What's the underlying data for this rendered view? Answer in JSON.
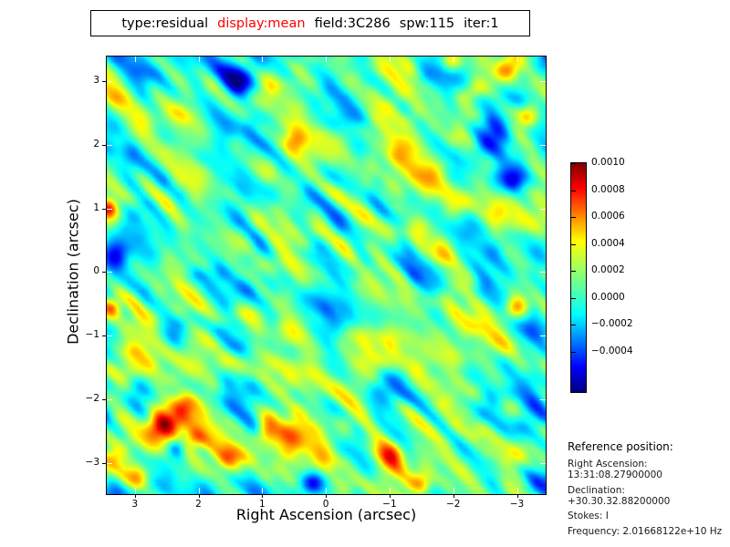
{
  "figure": {
    "title": {
      "segments": [
        {
          "text": "type:residual",
          "color": "#000000"
        },
        {
          "text": "display:mean",
          "color": "#ff0000"
        },
        {
          "text": "field:3C286",
          "color": "#000000"
        },
        {
          "text": "spw:115",
          "color": "#000000"
        },
        {
          "text": "iter:1",
          "color": "#000000"
        }
      ]
    },
    "x_axis": {
      "label": "Right Ascension (arcsec)",
      "tick_labels": [
        "3",
        "2",
        "1",
        "0",
        "−1",
        "−2",
        "−3"
      ],
      "tick_values": [
        3,
        2,
        1,
        0,
        -1,
        -2,
        -3
      ]
    },
    "y_axis": {
      "label": "Declination (arcsec)",
      "tick_labels": [
        "3",
        "2",
        "1",
        "0",
        "−1",
        "−2",
        "−3"
      ],
      "tick_values": [
        3,
        2,
        1,
        0,
        -1,
        -2,
        -3
      ]
    },
    "colorbar": {
      "tick_labels": [
        "0.0010",
        "0.0008",
        "0.0006",
        "0.0004",
        "0.0002",
        "0.0000",
        "−0.0002",
        "−0.0004"
      ],
      "tick_values": [
        0.001,
        0.0008,
        0.0006,
        0.0004,
        0.0002,
        0.0,
        -0.0002,
        -0.0004
      ]
    },
    "reference": {
      "heading": "Reference position:",
      "lines": [
        "Right Ascension: 13:31:08.27900000",
        "Declination: +30.30.32.88200000",
        "Stokes: I",
        "Frequency: 2.01668122e+10 Hz"
      ]
    }
  },
  "chart_data": {
    "type": "heatmap",
    "title": "type:residual display:mean field:3C286 spw:115 iter:1",
    "xlabel": "Right Ascension (arcsec)",
    "ylabel": "Declination (arcsec)",
    "xlim": [
      3.44,
      -3.45
    ],
    "ylim": [
      -3.49,
      3.38
    ],
    "x_ticks": [
      3,
      2,
      1,
      0,
      -1,
      -2,
      -3
    ],
    "y_ticks": [
      3,
      2,
      1,
      0,
      -1,
      -2,
      -3
    ],
    "colormap": "jet",
    "grid": false,
    "legend": "colorbar-right",
    "colorbar_ticks": [
      0.001,
      0.0008,
      0.0006,
      0.0004,
      0.0002,
      0.0,
      -0.0002,
      -0.0004
    ],
    "value_range": [
      -0.0007,
      0.001
    ],
    "background_level": 9e-05,
    "texture": "correlated residual noise with diagonal streaks (upper-left to lower-right)",
    "hotspots": [
      [
        2.58,
        -2.42,
        0.00095,
        0.17
      ],
      [
        2.1,
        -2.62,
        0.0005,
        0.13
      ],
      [
        2.22,
        -2.08,
        0.00045,
        0.13
      ],
      [
        1.55,
        -2.95,
        0.00055,
        0.15
      ],
      [
        2.95,
        -3.22,
        0.00045,
        0.14
      ],
      [
        1.0,
        -2.55,
        0.0004,
        0.12
      ],
      [
        3.35,
        -2.9,
        0.0004,
        0.13
      ],
      [
        -1.0,
        -2.9,
        0.00055,
        0.16
      ],
      [
        -1.5,
        -3.3,
        0.00045,
        0.13
      ],
      [
        -2.98,
        -0.55,
        0.0006,
        0.14
      ],
      [
        -2.85,
        3.2,
        0.00065,
        0.15
      ],
      [
        -2.35,
        2.85,
        0.0005,
        0.13
      ],
      [
        -3.15,
        2.45,
        0.00055,
        0.14
      ],
      [
        -1.95,
        3.3,
        0.00045,
        0.12
      ],
      [
        3.42,
        1.0,
        0.0005,
        0.1
      ],
      [
        3.35,
        -0.55,
        0.0005,
        0.12
      ],
      [
        0.5,
        2.05,
        0.00035,
        0.14
      ],
      [
        1.35,
        3.0,
        -0.00055,
        0.18
      ],
      [
        -3.4,
        3.25,
        -0.0005,
        0.22
      ],
      [
        -2.55,
        2.1,
        -0.0005,
        0.2
      ],
      [
        -3.0,
        1.5,
        -0.00045,
        0.22
      ],
      [
        2.4,
        -0.95,
        -0.0004,
        0.2
      ],
      [
        0.2,
        -3.3,
        -0.00045,
        0.13
      ],
      [
        -0.9,
        -1.9,
        -0.00035,
        0.2
      ],
      [
        3.3,
        0.3,
        -0.0004,
        0.18
      ],
      [
        2.9,
        -1.9,
        -0.0004,
        0.18
      ],
      [
        -3.3,
        -3.3,
        -0.00045,
        0.2
      ],
      [
        2.35,
        -2.75,
        -0.0004,
        0.1
      ]
    ]
  }
}
